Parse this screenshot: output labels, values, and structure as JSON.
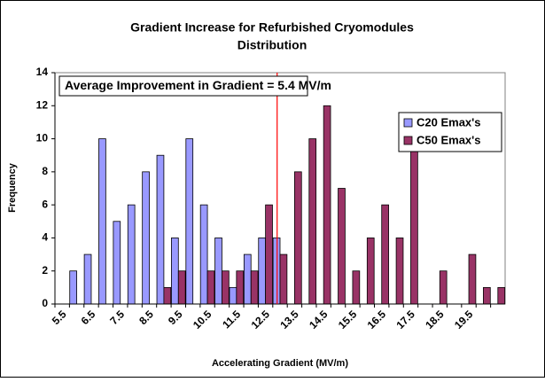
{
  "chart_data": {
    "type": "bar",
    "title": [
      "Gradient Increase for Refurbished Cryomodules",
      "Distribution"
    ],
    "annotation": "Average Improvement in Gradient = 5.4 MV/m",
    "x_label": "Accelerating Gradient (MV/m)",
    "y_label": "Frequency",
    "categories": [
      "5.5",
      null,
      "6.5",
      null,
      "7.5",
      null,
      "8.5",
      null,
      "9.5",
      null,
      "10.5",
      null,
      "11.5",
      null,
      "12.5",
      null,
      "13.5",
      null,
      "14.5",
      null,
      "15.5",
      null,
      "16.5",
      null,
      "17.5",
      null,
      "18.5",
      null,
      "19.5",
      null,
      null
    ],
    "series": [
      {
        "name": "C20 Emax's",
        "color": "#9999ff",
        "values": [
          0,
          2,
          3,
          10,
          5,
          6,
          8,
          9,
          4,
          10,
          6,
          4,
          1,
          3,
          4,
          4,
          0,
          0,
          0,
          0,
          0,
          0,
          0,
          0,
          0,
          0,
          0,
          0,
          0,
          0,
          0
        ]
      },
      {
        "name": "C50 Emax's",
        "color": "#993366",
        "values": [
          0,
          0,
          0,
          0,
          0,
          0,
          0,
          1,
          2,
          0,
          2,
          2,
          2,
          2,
          6,
          3,
          8,
          10,
          12,
          7,
          2,
          4,
          6,
          4,
          10,
          0,
          2,
          0,
          3,
          1,
          1
        ]
      }
    ],
    "ylim": [
      0,
      14
    ],
    "yticks": [
      0,
      2,
      4,
      6,
      8,
      10,
      12,
      14
    ],
    "grid": false,
    "legend": "upper right"
  }
}
